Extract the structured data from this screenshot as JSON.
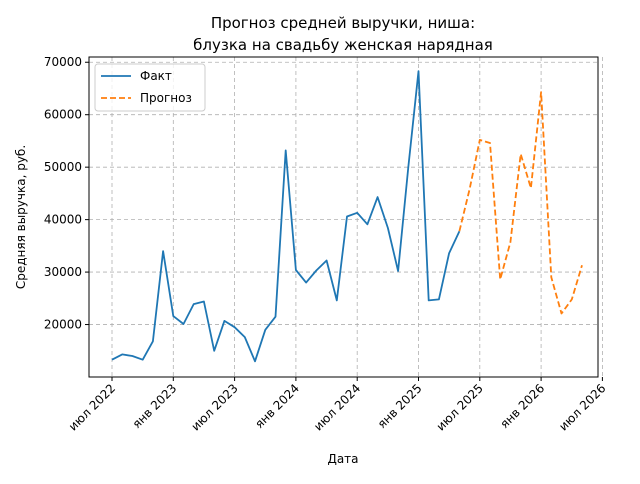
{
  "chart_data": {
    "type": "line",
    "title_line1": "Прогноз средней выручки, ниша:",
    "title_line2": "блузка на свадьбу женская нарядная",
    "xlabel": "Дата",
    "ylabel": "Средняя выручка, руб.",
    "x_ticks": [
      "июл 2022",
      "янв 2023",
      "июл 2023",
      "янв 2024",
      "июл 2024",
      "янв 2025",
      "июл 2025",
      "янв 2026",
      "июл 2026"
    ],
    "y_ticks": [
      "20000",
      "30000",
      "40000",
      "50000",
      "60000",
      "70000"
    ],
    "ylim": [
      10000,
      71000
    ],
    "grid": true,
    "legend_position": "top-left",
    "colors": {
      "fact": "#1f77b4",
      "forecast": "#ff7f0e",
      "grid": "#b0b0b0"
    },
    "series": [
      {
        "name": "Факт",
        "style": "solid",
        "x": [
          "2022-07",
          "2022-08",
          "2022-09",
          "2022-10",
          "2022-11",
          "2022-12",
          "2023-01",
          "2023-02",
          "2023-03",
          "2023-04",
          "2023-05",
          "2023-06",
          "2023-07",
          "2023-08",
          "2023-09",
          "2023-10",
          "2023-11",
          "2023-12",
          "2024-01",
          "2024-02",
          "2024-03",
          "2024-04",
          "2024-05",
          "2024-06",
          "2024-07",
          "2024-08",
          "2024-09",
          "2024-10",
          "2024-11",
          "2024-12",
          "2025-01",
          "2025-02",
          "2025-03",
          "2025-04",
          "2025-05"
        ],
        "values": [
          13300,
          14300,
          14000,
          13300,
          16800,
          34000,
          21600,
          20100,
          23900,
          24400,
          15000,
          20700,
          19500,
          17600,
          13000,
          19000,
          21500,
          53200,
          30400,
          28000,
          30300,
          32200,
          24600,
          40600,
          41300,
          39100,
          44300,
          38400,
          30200,
          50000,
          68300,
          24600,
          24800,
          33600,
          37800
        ]
      },
      {
        "name": "Прогноз",
        "style": "dashed",
        "x": [
          "2025-05",
          "2025-06",
          "2025-07",
          "2025-08",
          "2025-09",
          "2025-10",
          "2025-11",
          "2025-12",
          "2026-01",
          "2026-02",
          "2026-03",
          "2026-04",
          "2026-05",
          "2026-06"
        ],
        "values": [
          37800,
          45800,
          55200,
          54600,
          28600,
          35700,
          52500,
          46000,
          64300,
          29000,
          22100,
          24800,
          31300,
          null
        ]
      }
    ]
  }
}
